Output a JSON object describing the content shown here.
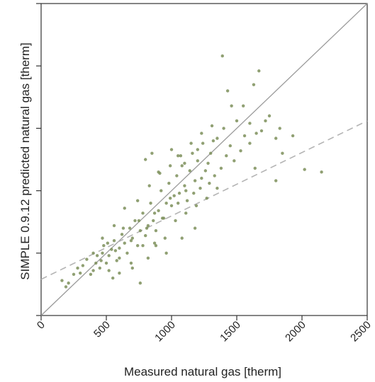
{
  "chart_data": {
    "type": "scatter",
    "title": "",
    "xlabel": "Measured natural gas [therm]",
    "ylabel": "SIMPLE 0.9.12 predicted natural gas [therm]",
    "xlim": [
      0,
      2500
    ],
    "ylim": [
      0,
      2500
    ],
    "x_ticks": [
      0,
      500,
      1000,
      1500,
      2000,
      2500
    ],
    "x_tick_labels": [
      "0",
      "500",
      "1000",
      "1500",
      "2000",
      "2500"
    ],
    "y_ticks": [
      0,
      500,
      1000,
      1500,
      2000,
      2500
    ],
    "grid": false,
    "legend": "none",
    "colors": {
      "points": "#7d8f5a",
      "reference_line": "#9a9a9a",
      "fit_line": "#b4b4b4",
      "axes": "#333333"
    },
    "reference_line": {
      "label": "",
      "x": [
        0,
        2500
      ],
      "y": [
        0,
        2500
      ]
    },
    "fit_line": {
      "label": "",
      "x": [
        0,
        2500
      ],
      "y": [
        290,
        1560
      ]
    },
    "series": [
      {
        "name": "",
        "points": [
          [
            160,
            280
          ],
          [
            190,
            230
          ],
          [
            210,
            260
          ],
          [
            250,
            330
          ],
          [
            280,
            380
          ],
          [
            300,
            340
          ],
          [
            320,
            400
          ],
          [
            350,
            450
          ],
          [
            380,
            330
          ],
          [
            400,
            360
          ],
          [
            420,
            420
          ],
          [
            450,
            380
          ],
          [
            470,
            500
          ],
          [
            480,
            560
          ],
          [
            500,
            420
          ],
          [
            520,
            480
          ],
          [
            540,
            530
          ],
          [
            560,
            600
          ],
          [
            580,
            440
          ],
          [
            600,
            540
          ],
          [
            620,
            650
          ],
          [
            640,
            580
          ],
          [
            660,
            500
          ],
          [
            680,
            700
          ],
          [
            700,
            620
          ],
          [
            720,
            760
          ],
          [
            740,
            560
          ],
          [
            760,
            680
          ],
          [
            780,
            820
          ],
          [
            800,
            640
          ],
          [
            820,
            720
          ],
          [
            840,
            900
          ],
          [
            860,
            760
          ],
          [
            880,
            680
          ],
          [
            900,
            840
          ],
          [
            920,
            1000
          ],
          [
            940,
            780
          ],
          [
            960,
            900
          ],
          [
            980,
            1060
          ],
          [
            1000,
            880
          ],
          [
            1020,
            960
          ],
          [
            1040,
            1120
          ],
          [
            1060,
            980
          ],
          [
            1080,
            1200
          ],
          [
            1100,
            1040
          ],
          [
            1120,
            920
          ],
          [
            1140,
            1160
          ],
          [
            1160,
            1300
          ],
          [
            1180,
            1080
          ],
          [
            1200,
            1240
          ],
          [
            1220,
            1020
          ],
          [
            1240,
            1380
          ],
          [
            1260,
            1160
          ],
          [
            1280,
            1220
          ],
          [
            1300,
            1300
          ],
          [
            1330,
            1120
          ],
          [
            1350,
            1420
          ],
          [
            1380,
            1180
          ],
          [
            1400,
            1500
          ],
          [
            1420,
            1280
          ],
          [
            1450,
            1360
          ],
          [
            1480,
            1240
          ],
          [
            1500,
            1560
          ],
          [
            1530,
            1320
          ],
          [
            1560,
            1440
          ],
          [
            1600,
            1380
          ],
          [
            1640,
            1180
          ],
          [
            1690,
            1480
          ],
          [
            1750,
            1600
          ],
          [
            1800,
            1420
          ],
          [
            1850,
            1300
          ],
          [
            430,
            480
          ],
          [
            470,
            620
          ],
          [
            520,
            360
          ],
          [
            560,
            720
          ],
          [
            600,
            460
          ],
          [
            640,
            860
          ],
          [
            690,
            420
          ],
          [
            740,
            920
          ],
          [
            780,
            560
          ],
          [
            830,
            1040
          ],
          [
            870,
            580
          ],
          [
            910,
            1140
          ],
          [
            950,
            620
          ],
          [
            990,
            1200
          ],
          [
            1030,
            760
          ],
          [
            1070,
            1280
          ],
          [
            1110,
            820
          ],
          [
            1150,
            1380
          ],
          [
            1190,
            880
          ],
          [
            1230,
            1460
          ],
          [
            1270,
            940
          ],
          [
            1310,
            1520
          ],
          [
            1350,
            1020
          ],
          [
            400,
            500
          ],
          [
            460,
            440
          ],
          [
            510,
            580
          ],
          [
            570,
            520
          ],
          [
            630,
            700
          ],
          [
            690,
            600
          ],
          [
            750,
            760
          ],
          [
            810,
            700
          ],
          [
            870,
            820
          ],
          [
            930,
            780
          ],
          [
            990,
            940
          ],
          [
            1050,
            900
          ],
          [
            1110,
            1000
          ],
          [
            1170,
            980
          ],
          [
            1230,
            1100
          ],
          [
            1290,
            1060
          ],
          [
            800,
            1250
          ],
          [
            850,
            1300
          ],
          [
            900,
            1150
          ],
          [
            1000,
            1330
          ],
          [
            1050,
            1280
          ],
          [
            1100,
            1220
          ],
          [
            1200,
            1330
          ],
          [
            1320,
            1400
          ],
          [
            1390,
            2080
          ],
          [
            1670,
            1960
          ],
          [
            1630,
            1850
          ],
          [
            1430,
            1800
          ],
          [
            1460,
            1680
          ],
          [
            1720,
            1560
          ],
          [
            1830,
            1500
          ],
          [
            1930,
            1440
          ],
          [
            2020,
            1170
          ],
          [
            2150,
            1150
          ],
          [
            1800,
            1080
          ],
          [
            1650,
            1460
          ],
          [
            1550,
            1680
          ],
          [
            1600,
            1540
          ],
          [
            760,
            260
          ],
          [
            880,
            560
          ],
          [
            700,
            380
          ],
          [
            600,
            340
          ],
          [
            550,
            300
          ],
          [
            820,
            460
          ],
          [
            960,
            500
          ],
          [
            1080,
            620
          ],
          [
            1180,
            700
          ]
        ]
      }
    ]
  }
}
